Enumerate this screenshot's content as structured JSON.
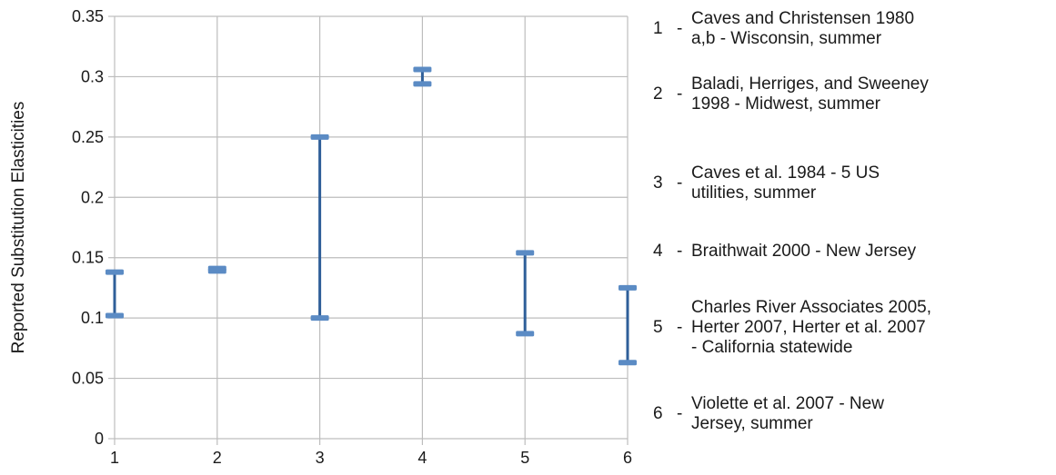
{
  "chart_data": {
    "type": "range",
    "categories": [
      "1",
      "2",
      "3",
      "4",
      "5",
      "6"
    ],
    "ranges": [
      {
        "category": "1",
        "low": 0.102,
        "high": 0.138
      },
      {
        "category": "2",
        "low": 0.139,
        "high": 0.141
      },
      {
        "category": "3",
        "low": 0.1,
        "high": 0.25
      },
      {
        "category": "4",
        "low": 0.294,
        "high": 0.306
      },
      {
        "category": "5",
        "low": 0.087,
        "high": 0.154
      },
      {
        "category": "6",
        "low": 0.063,
        "high": 0.125
      }
    ],
    "ylabel": "Reported Substitution Elasticities",
    "xlabel": "",
    "ylim": [
      0,
      0.35
    ],
    "yticks": [
      "0",
      "0.05",
      "0.1",
      "0.15",
      "0.2",
      "0.25",
      "0.3",
      "0.35"
    ],
    "grid": true,
    "series_color": "#2f5f99",
    "cap_color": "#5b8bc4",
    "grid_color": "#bdbdbd",
    "legend": [
      {
        "num": "1",
        "dash": "-",
        "lines": [
          "Caves and Christensen 1980",
          "a,b - Wisconsin, summer"
        ]
      },
      {
        "num": "2",
        "dash": "-",
        "lines": [
          "Baladi, Herriges, and Sweeney",
          "1998 - Midwest, summer"
        ]
      },
      {
        "num": "3",
        "dash": "-",
        "lines": [
          "Caves et al. 1984 - 5 US",
          "utilities, summer"
        ]
      },
      {
        "num": "4",
        "dash": "-",
        "lines": [
          "Braithwait 2000 - New Jersey"
        ]
      },
      {
        "num": "5",
        "dash": "-",
        "lines": [
          "Charles River Associates 2005,",
          "Herter 2007, Herter et al. 2007",
          "- California statewide"
        ]
      },
      {
        "num": "6",
        "dash": "-",
        "lines": [
          "Violette et al. 2007 - New",
          "Jersey, summer"
        ]
      }
    ]
  }
}
